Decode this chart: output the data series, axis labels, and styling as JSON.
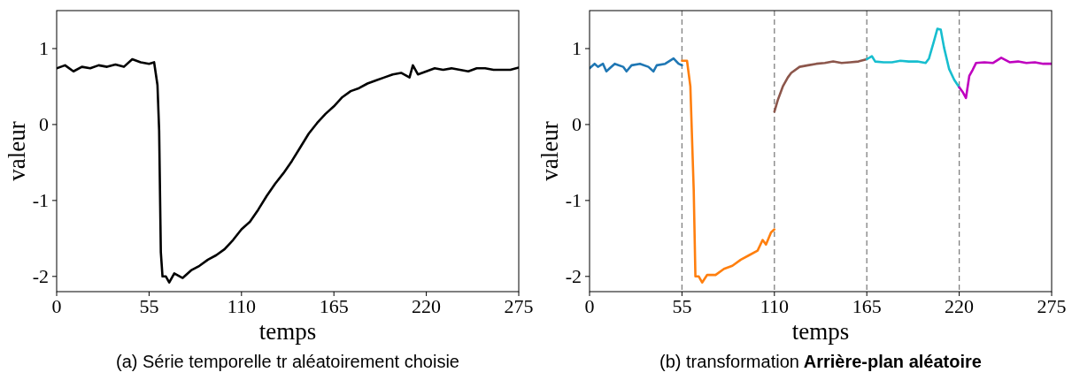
{
  "chart_data": [
    {
      "type": "line",
      "title": "(a) Série temporelle tr aléatoirement choisie",
      "xlabel": "temps",
      "ylabel": "valeur",
      "xlim": [
        0,
        275
      ],
      "xticks": [
        0,
        55,
        110,
        165,
        220,
        275
      ],
      "ylim": [
        -2.2,
        1.5
      ],
      "yticks": [
        -2,
        -1,
        0,
        1
      ],
      "grid": false,
      "line_style": "solid",
      "series": [
        {
          "color": "#000000",
          "x": [
            0,
            5,
            10,
            15,
            20,
            25,
            30,
            35,
            40,
            45,
            50,
            55,
            58,
            60,
            61,
            62,
            63,
            65,
            67,
            70,
            75,
            80,
            85,
            90,
            95,
            100,
            105,
            110,
            115,
            120,
            125,
            130,
            135,
            140,
            145,
            150,
            155,
            160,
            165,
            170,
            175,
            180,
            185,
            190,
            195,
            200,
            205,
            210,
            212,
            215,
            220,
            225,
            230,
            235,
            240,
            245,
            250,
            255,
            260,
            265,
            270,
            275
          ],
          "values": [
            0.74,
            0.78,
            0.7,
            0.76,
            0.74,
            0.78,
            0.76,
            0.79,
            0.76,
            0.86,
            0.82,
            0.8,
            0.82,
            0.52,
            -0.08,
            -1.68,
            -2.0,
            -2.0,
            -2.08,
            -1.96,
            -2.02,
            -1.92,
            -1.86,
            -1.78,
            -1.72,
            -1.64,
            -1.52,
            -1.38,
            -1.28,
            -1.12,
            -0.94,
            -0.78,
            -0.64,
            -0.48,
            -0.3,
            -0.12,
            0.02,
            0.14,
            0.24,
            0.36,
            0.44,
            0.48,
            0.54,
            0.58,
            0.62,
            0.66,
            0.68,
            0.62,
            0.78,
            0.66,
            0.7,
            0.74,
            0.72,
            0.74,
            0.72,
            0.7,
            0.74,
            0.74,
            0.72,
            0.72,
            0.72,
            0.75
          ]
        }
      ]
    },
    {
      "type": "line",
      "title": "(b) transformation",
      "subtitle": "Arrière-plan aléatoire",
      "xlabel": "temps",
      "ylabel": "valeur",
      "xlim": [
        0,
        275
      ],
      "xticks": [
        0,
        55,
        110,
        165,
        220,
        275
      ],
      "ylim": [
        -2.2,
        1.5
      ],
      "yticks": [
        -2,
        -1,
        0,
        1
      ],
      "grid": false,
      "line_style": "solid",
      "ref_lines": [
        {
          "axis": "x",
          "value": 55,
          "color": "#808080",
          "line_style": "dashed"
        },
        {
          "axis": "x",
          "value": 110,
          "color": "#808080",
          "line_style": "dashed"
        },
        {
          "axis": "x",
          "value": 165,
          "color": "#808080",
          "line_style": "dashed"
        },
        {
          "axis": "x",
          "value": 220,
          "color": "#808080",
          "line_style": "dashed"
        }
      ],
      "series": [
        {
          "color": "#1f77b4",
          "x": [
            0,
            3,
            5,
            8,
            10,
            12,
            15,
            20,
            22,
            25,
            30,
            35,
            38,
            40,
            45,
            50,
            53,
            55
          ],
          "values": [
            0.74,
            0.8,
            0.76,
            0.8,
            0.7,
            0.74,
            0.8,
            0.76,
            0.7,
            0.78,
            0.8,
            0.76,
            0.7,
            0.78,
            0.8,
            0.87,
            0.8,
            0.78
          ]
        },
        {
          "color": "#ff7f0e",
          "x": [
            55,
            58,
            60,
            62,
            63,
            65,
            67,
            70,
            75,
            80,
            85,
            90,
            95,
            100,
            103,
            105,
            108,
            110
          ],
          "values": [
            0.84,
            0.84,
            0.5,
            -0.87,
            -2.0,
            -2.0,
            -2.08,
            -1.98,
            -1.98,
            -1.9,
            -1.86,
            -1.78,
            -1.72,
            -1.66,
            -1.52,
            -1.58,
            -1.42,
            -1.38
          ]
        },
        {
          "color": "#8c564b",
          "x": [
            110,
            112,
            115,
            118,
            120,
            125,
            130,
            135,
            140,
            145,
            150,
            155,
            160,
            165
          ],
          "values": [
            0.17,
            0.32,
            0.5,
            0.62,
            0.68,
            0.76,
            0.78,
            0.8,
            0.81,
            0.83,
            0.81,
            0.82,
            0.83,
            0.86
          ]
        },
        {
          "color": "#17becf",
          "x": [
            165,
            168,
            170,
            175,
            180,
            185,
            190,
            195,
            200,
            202,
            205,
            207,
            209,
            211,
            214,
            217,
            220
          ],
          "values": [
            0.86,
            0.9,
            0.83,
            0.82,
            0.82,
            0.84,
            0.83,
            0.83,
            0.81,
            0.87,
            1.1,
            1.26,
            1.25,
            1.01,
            0.73,
            0.59,
            0.49
          ]
        },
        {
          "color": "#bf00bf",
          "x": [
            220,
            222,
            224,
            226,
            228,
            230,
            235,
            240,
            245,
            250,
            255,
            260,
            265,
            270,
            275
          ],
          "values": [
            0.49,
            0.43,
            0.35,
            0.64,
            0.72,
            0.81,
            0.82,
            0.81,
            0.88,
            0.82,
            0.83,
            0.81,
            0.82,
            0.8,
            0.8
          ]
        }
      ]
    }
  ]
}
